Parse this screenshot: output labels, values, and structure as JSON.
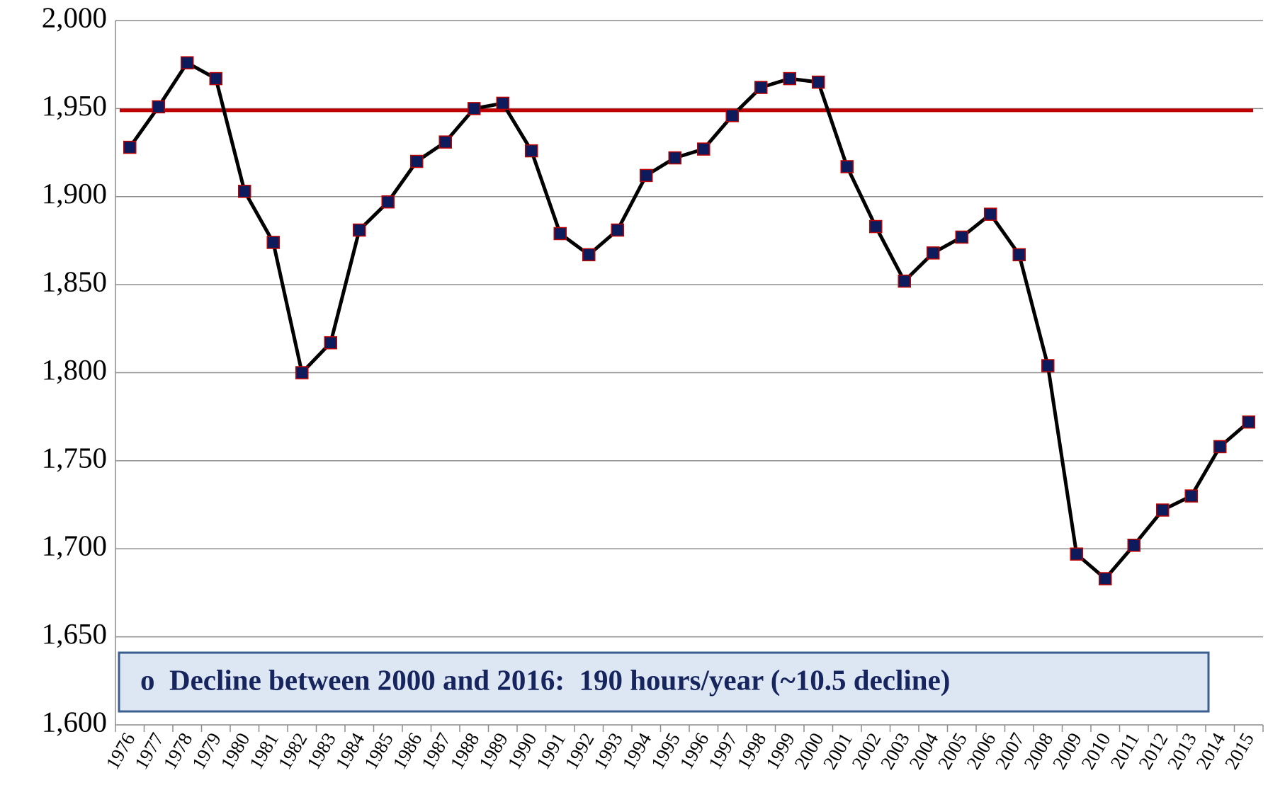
{
  "chart_data": {
    "type": "line",
    "categories": [
      "1976",
      "1977",
      "1978",
      "1979",
      "1980",
      "1981",
      "1982",
      "1983",
      "1984",
      "1985",
      "1986",
      "1987",
      "1988",
      "1989",
      "1990",
      "1991",
      "1992",
      "1993",
      "1994",
      "1995",
      "1996",
      "1997",
      "1998",
      "1999",
      "2000",
      "2001",
      "2002",
      "2003",
      "2004",
      "2005",
      "2006",
      "2007",
      "2008",
      "2009",
      "2010",
      "2011",
      "2012",
      "2013",
      "2014",
      "2015"
    ],
    "series": [
      {
        "color": "#000000",
        "marker_color": "#0d1b5c",
        "marker_edge": "#c00000",
        "values": [
          1928,
          1951,
          1976,
          1967,
          1903,
          1874,
          1800,
          1817,
          1881,
          1897,
          1920,
          1931,
          1950,
          1953,
          1926,
          1879,
          1867,
          1881,
          1912,
          1922,
          1927,
          1946,
          1962,
          1967,
          1965,
          1917,
          1883,
          1852,
          1868,
          1877,
          1890,
          1867,
          1804,
          1697,
          1683,
          1702,
          1722,
          1730,
          1758,
          1772
        ]
      }
    ],
    "reference_line": {
      "value": 1949,
      "color": "#c00000"
    },
    "ylim": [
      1600,
      2000
    ],
    "yticks": [
      {
        "value": 1600,
        "label": "1,600"
      },
      {
        "value": 1650,
        "label": "1,650"
      },
      {
        "value": 1700,
        "label": "1,700"
      },
      {
        "value": 1750,
        "label": "1,750"
      },
      {
        "value": 1800,
        "label": "1,800"
      },
      {
        "value": 1850,
        "label": "1,850"
      },
      {
        "value": 1900,
        "label": "1,900"
      },
      {
        "value": 1950,
        "label": "1,950"
      },
      {
        "value": 2000,
        "label": "2,000"
      }
    ],
    "grid": true,
    "annotation": "o  Decline between 2000 and 2016:  190 hours/year (~10.5 decline)"
  }
}
